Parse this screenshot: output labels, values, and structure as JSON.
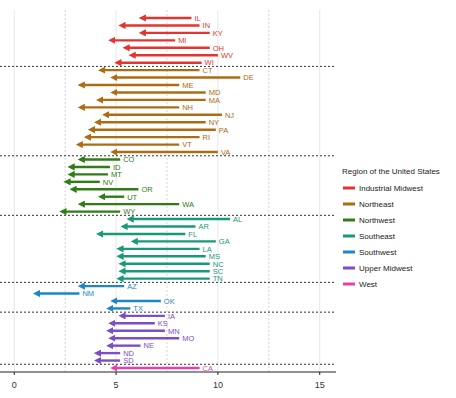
{
  "chart_data": {
    "type": "arrow",
    "orientation": "horizontal",
    "grid": true,
    "legend": "right",
    "legend_title": "Region of the United States",
    "xlim": [
      -0.7,
      15.8
    ],
    "xticks": [
      0,
      5,
      10,
      15
    ],
    "series": [
      {
        "name": "Industrial Midwest",
        "color": "#e3342f",
        "categories": [
          "IL",
          "IN",
          "KY",
          "MI",
          "OH",
          "WV",
          "WI"
        ],
        "start": [
          8.7,
          9.1,
          9.6,
          7.9,
          9.6,
          10.0,
          9.2
        ],
        "values": [
          6.2,
          5.2,
          6.2,
          4.7,
          5.4,
          5.7,
          5.0
        ]
      },
      {
        "name": "Northeast",
        "color": "#ad6c12",
        "categories": [
          "CT",
          "DE",
          "ME",
          "MD",
          "MA",
          "NH",
          "NJ",
          "NY",
          "PA",
          "RI",
          "VT",
          "VA"
        ],
        "start": [
          9.1,
          11.1,
          8.1,
          9.4,
          9.4,
          8.1,
          10.2,
          9.4,
          9.9,
          9.1,
          8.1,
          10.0
        ],
        "values": [
          4.2,
          4.8,
          3.2,
          4.8,
          4.1,
          3.2,
          4.4,
          4.0,
          3.7,
          3.5,
          3.1,
          4.8
        ]
      },
      {
        "name": "Northwest",
        "color": "#2f7d14",
        "categories": [
          "CO",
          "ID",
          "MT",
          "NV",
          "OR",
          "UT",
          "WA",
          "WY"
        ],
        "start": [
          5.2,
          4.7,
          4.6,
          4.2,
          6.1,
          5.4,
          8.1,
          5.2
        ],
        "values": [
          3.2,
          2.7,
          2.7,
          2.5,
          2.8,
          4.2,
          3.2,
          2.3
        ]
      },
      {
        "name": "Southeast",
        "color": "#189a78",
        "categories": [
          "AL",
          "AR",
          "FL",
          "GA",
          "LA",
          "MS",
          "NC",
          "SC",
          "TN"
        ],
        "start": [
          10.6,
          8.9,
          8.4,
          9.9,
          9.1,
          9.4,
          9.6,
          9.6,
          9.6
        ],
        "values": [
          5.6,
          5.3,
          4.1,
          5.8,
          5.1,
          5.1,
          5.2,
          5.2,
          5.1
        ]
      },
      {
        "name": "Southwest",
        "color": "#1f86c6",
        "categories": [
          "AZ",
          "NM",
          "OK",
          "TX"
        ],
        "start": [
          5.4,
          3.2,
          7.2,
          5.7
        ],
        "values": [
          3.2,
          1.0,
          4.8,
          4.6
        ]
      },
      {
        "name": "Upper Midwest",
        "color": "#7c4dc4",
        "categories": [
          "IA",
          "KS",
          "MN",
          "MO",
          "NE",
          "ND",
          "SD"
        ],
        "start": [
          7.4,
          6.9,
          7.4,
          8.1,
          6.2,
          5.2,
          5.2
        ],
        "values": [
          5.2,
          4.7,
          4.6,
          4.7,
          4.6,
          4.0,
          4.0
        ]
      },
      {
        "name": "West",
        "color": "#e83fae",
        "categories": [
          "CA"
        ],
        "start": [
          9.1
        ],
        "values": [
          4.8
        ]
      }
    ]
  }
}
